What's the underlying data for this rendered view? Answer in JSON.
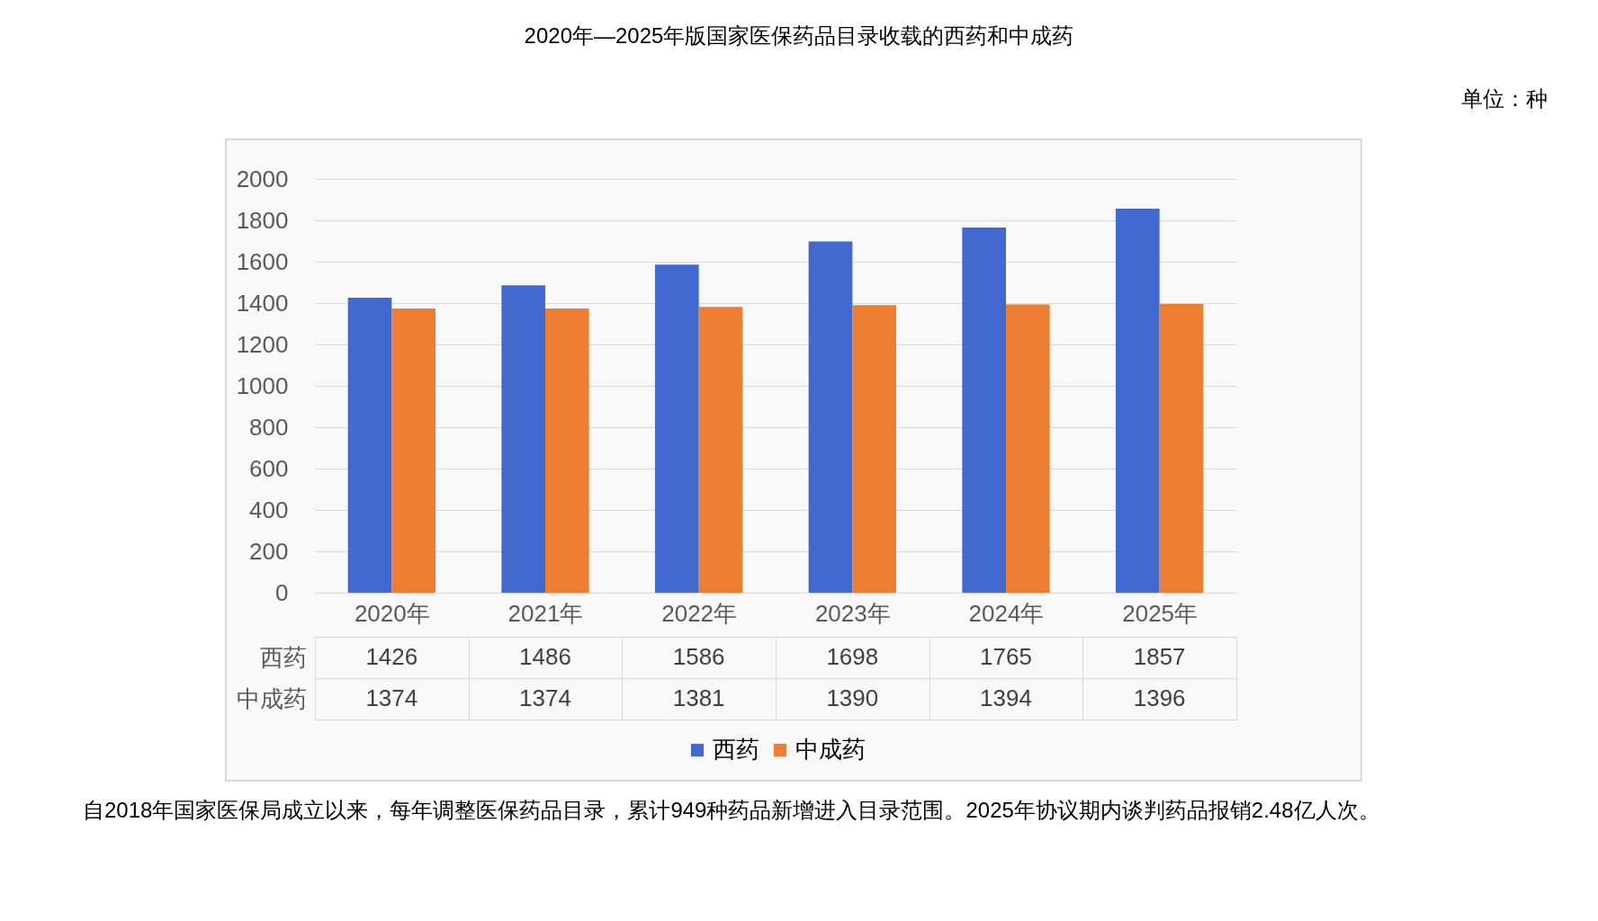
{
  "chart_data": {
    "type": "bar",
    "title": "2020年—2025年版国家医保药品目录收载的西药和中成药",
    "categories": [
      "2020年",
      "2021年",
      "2022年",
      "2023年",
      "2024年",
      "2025年"
    ],
    "series": [
      {
        "name": "西药",
        "color": "#4169cf",
        "values": [
          1426,
          1486,
          1586,
          1698,
          1765,
          1857
        ]
      },
      {
        "name": "中成药",
        "color": "#ed7d31",
        "values": [
          1374,
          1374,
          1381,
          1390,
          1394,
          1396
        ]
      }
    ],
    "ylim": [
      0,
      2000
    ],
    "yticks": [
      0,
      200,
      400,
      600,
      800,
      1000,
      1200,
      1400,
      1600,
      1800,
      2000
    ],
    "grid": "y",
    "legend": "bottom",
    "data_labels": true,
    "annotations": [
      "单位：种",
      "自2018年国家医保局成立以来，每年调整医保药品目录，累计949种药品新增进入目录范围。2025年协议期内谈判药品报销2.48亿人次。"
    ]
  }
}
